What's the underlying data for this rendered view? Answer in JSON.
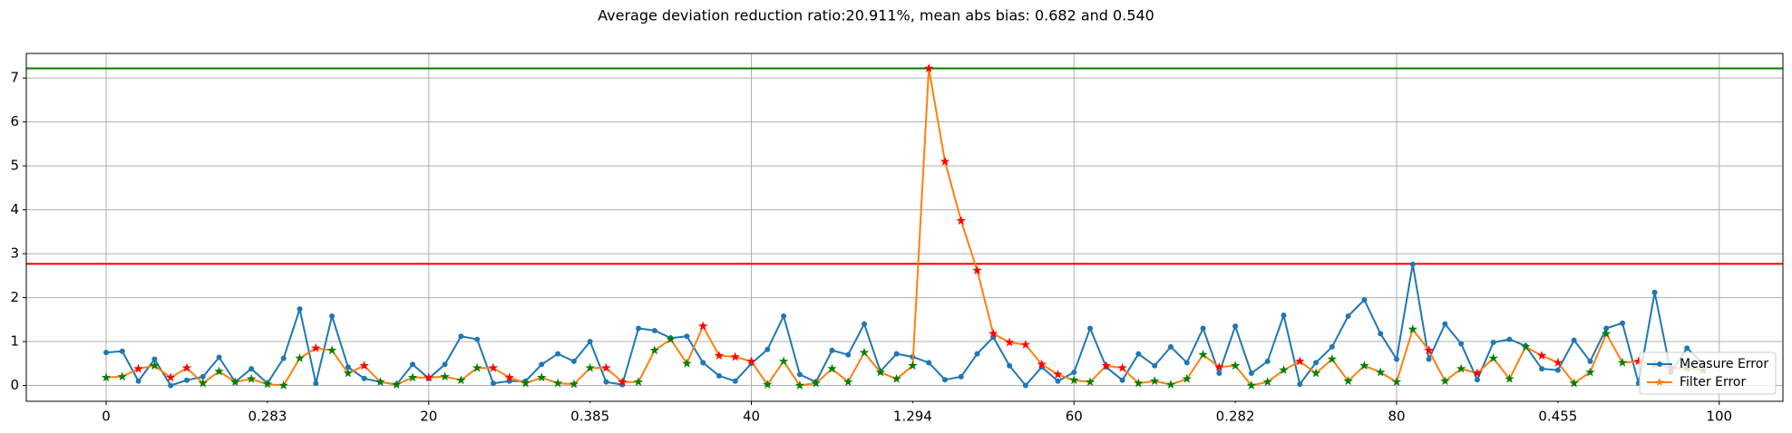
{
  "chart_data": {
    "type": "line",
    "title": "Average deviation reduction ratio:20.911%, mean abs bias: 0.682 and 0.540",
    "x": [
      0,
      1,
      2,
      3,
      4,
      5,
      6,
      7,
      8,
      9,
      10,
      11,
      12,
      13,
      14,
      15,
      16,
      17,
      18,
      19,
      20,
      21,
      22,
      23,
      24,
      25,
      26,
      27,
      28,
      29,
      30,
      31,
      32,
      33,
      34,
      35,
      36,
      37,
      38,
      39,
      40,
      41,
      42,
      43,
      44,
      45,
      46,
      47,
      48,
      49,
      50,
      51,
      52,
      53,
      54,
      55,
      56,
      57,
      58,
      59,
      60,
      61,
      62,
      63,
      64,
      65,
      66,
      67,
      68,
      69,
      70,
      71,
      72,
      73,
      74,
      75,
      76,
      77,
      78,
      79,
      80,
      81,
      82,
      83,
      84,
      85,
      86,
      87,
      88,
      89,
      90,
      91,
      92,
      93,
      94,
      95,
      96,
      97,
      98,
      99
    ],
    "series": [
      {
        "name": "Measure Error",
        "color": "#1f77b4",
        "marker": "dot",
        "values": [
          0.75,
          0.78,
          0.1,
          0.6,
          0.0,
          0.12,
          0.2,
          0.64,
          0.08,
          0.38,
          0.05,
          0.62,
          1.74,
          0.05,
          1.58,
          0.42,
          0.16,
          0.08,
          0.02,
          0.48,
          0.16,
          0.48,
          1.12,
          1.05,
          0.05,
          0.1,
          0.1,
          0.48,
          0.72,
          0.55,
          1.0,
          0.08,
          0.02,
          1.3,
          1.25,
          1.08,
          1.12,
          0.52,
          0.22,
          0.1,
          0.5,
          0.82,
          1.58,
          0.25,
          0.08,
          0.8,
          0.7,
          1.4,
          0.32,
          0.72,
          0.65,
          0.52,
          0.13,
          0.2,
          0.72,
          1.1,
          0.45,
          0.0,
          0.42,
          0.1,
          0.3,
          1.3,
          0.42,
          0.12,
          0.72,
          0.45,
          0.88,
          0.52,
          1.3,
          0.28,
          1.35,
          0.28,
          0.55,
          1.6,
          0.03,
          0.52,
          0.88,
          1.58,
          1.95,
          1.18,
          0.6,
          2.76,
          0.6,
          1.4,
          0.95,
          0.13,
          0.98,
          1.05,
          0.9,
          0.38,
          0.35,
          1.03,
          0.55,
          1.3,
          1.42,
          0.05,
          2.12,
          0.3,
          0.85,
          0.5
        ]
      },
      {
        "name": "Filter Error",
        "color": "#ff7f0e",
        "marker": "star",
        "values": [
          0.18,
          0.2,
          0.38,
          0.45,
          0.18,
          0.4,
          0.05,
          0.32,
          0.08,
          0.15,
          0.03,
          0.0,
          0.62,
          0.85,
          0.8,
          0.28,
          0.45,
          0.08,
          0.02,
          0.18,
          0.18,
          0.2,
          0.12,
          0.4,
          0.4,
          0.18,
          0.05,
          0.18,
          0.05,
          0.03,
          0.4,
          0.4,
          0.08,
          0.08,
          0.8,
          1.05,
          0.5,
          1.35,
          0.68,
          0.65,
          0.55,
          0.02,
          0.55,
          0.0,
          0.05,
          0.38,
          0.08,
          0.75,
          0.3,
          0.15,
          0.45,
          7.22,
          5.1,
          3.75,
          2.62,
          1.18,
          0.98,
          0.93,
          0.48,
          0.25,
          0.12,
          0.08,
          0.45,
          0.4,
          0.05,
          0.1,
          0.02,
          0.15,
          0.7,
          0.42,
          0.45,
          0.0,
          0.08,
          0.35,
          0.55,
          0.28,
          0.6,
          0.1,
          0.45,
          0.3,
          0.08,
          1.28,
          0.8,
          0.1,
          0.38,
          0.28,
          0.62,
          0.15,
          0.88,
          0.68,
          0.52,
          0.05,
          0.3,
          1.18,
          0.52,
          0.55,
          0.48,
          0.4,
          0.4,
          0.35
        ]
      }
    ],
    "better_color": "green",
    "worse_color": "red",
    "hlines": [
      {
        "value": 7.22,
        "color": "green"
      },
      {
        "value": 2.77,
        "color": "red"
      }
    ],
    "xlim": [
      -4.95,
      103.95
    ],
    "ylim": [
      -0.36,
      7.56
    ],
    "xticks": [
      0,
      20,
      40,
      60,
      80,
      100
    ],
    "minor_xticks": [
      {
        "value": 10,
        "label": "0.283"
      },
      {
        "value": 30,
        "label": "0.385"
      },
      {
        "value": 50,
        "label": "1.294"
      },
      {
        "value": 70,
        "label": "0.282"
      },
      {
        "value": 90,
        "label": "0.455"
      }
    ],
    "yticks": [
      0,
      1,
      2,
      3,
      4,
      5,
      6,
      7
    ],
    "grid": true,
    "legend": "lower right"
  }
}
